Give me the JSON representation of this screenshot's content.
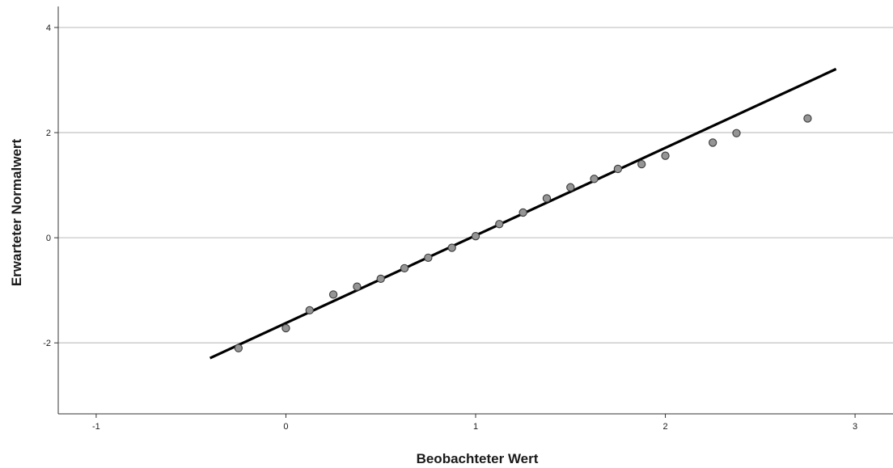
{
  "chart_data": {
    "type": "scatter",
    "title": "",
    "xlabel": "Beobachteter Wert",
    "ylabel": "Erwarteter Normalwert",
    "xlim": [
      -1.2,
      3.2
    ],
    "ylim": [
      -3.35,
      4.4
    ],
    "xticks": [
      -1,
      0,
      1,
      2,
      3
    ],
    "yticks": [
      -2,
      0,
      2,
      4
    ],
    "grid": "horizontal",
    "legend": "none",
    "colors": {
      "points_fill": "#959595",
      "points_stroke": "#3a3a3a",
      "line": "#000000",
      "grid": "#c8c8c8",
      "axis": "#333333"
    },
    "series": [
      {
        "kind": "points",
        "x": [
          -0.25,
          0.0,
          0.125,
          0.25,
          0.375,
          0.5,
          0.625,
          0.75,
          0.875,
          1.0,
          1.125,
          1.25,
          1.375,
          1.5,
          1.625,
          1.75,
          1.875,
          2.0,
          2.25,
          2.375,
          2.75
        ],
        "y": [
          -2.1,
          -1.72,
          -1.38,
          -1.08,
          -0.93,
          -0.78,
          -0.58,
          -0.38,
          -0.19,
          0.03,
          0.26,
          0.48,
          0.75,
          0.96,
          1.12,
          1.31,
          1.4,
          1.56,
          1.81,
          1.99,
          2.27
        ]
      },
      {
        "kind": "line",
        "x": [
          -0.4,
          2.9
        ],
        "y": [
          -2.29,
          3.21
        ]
      }
    ]
  }
}
